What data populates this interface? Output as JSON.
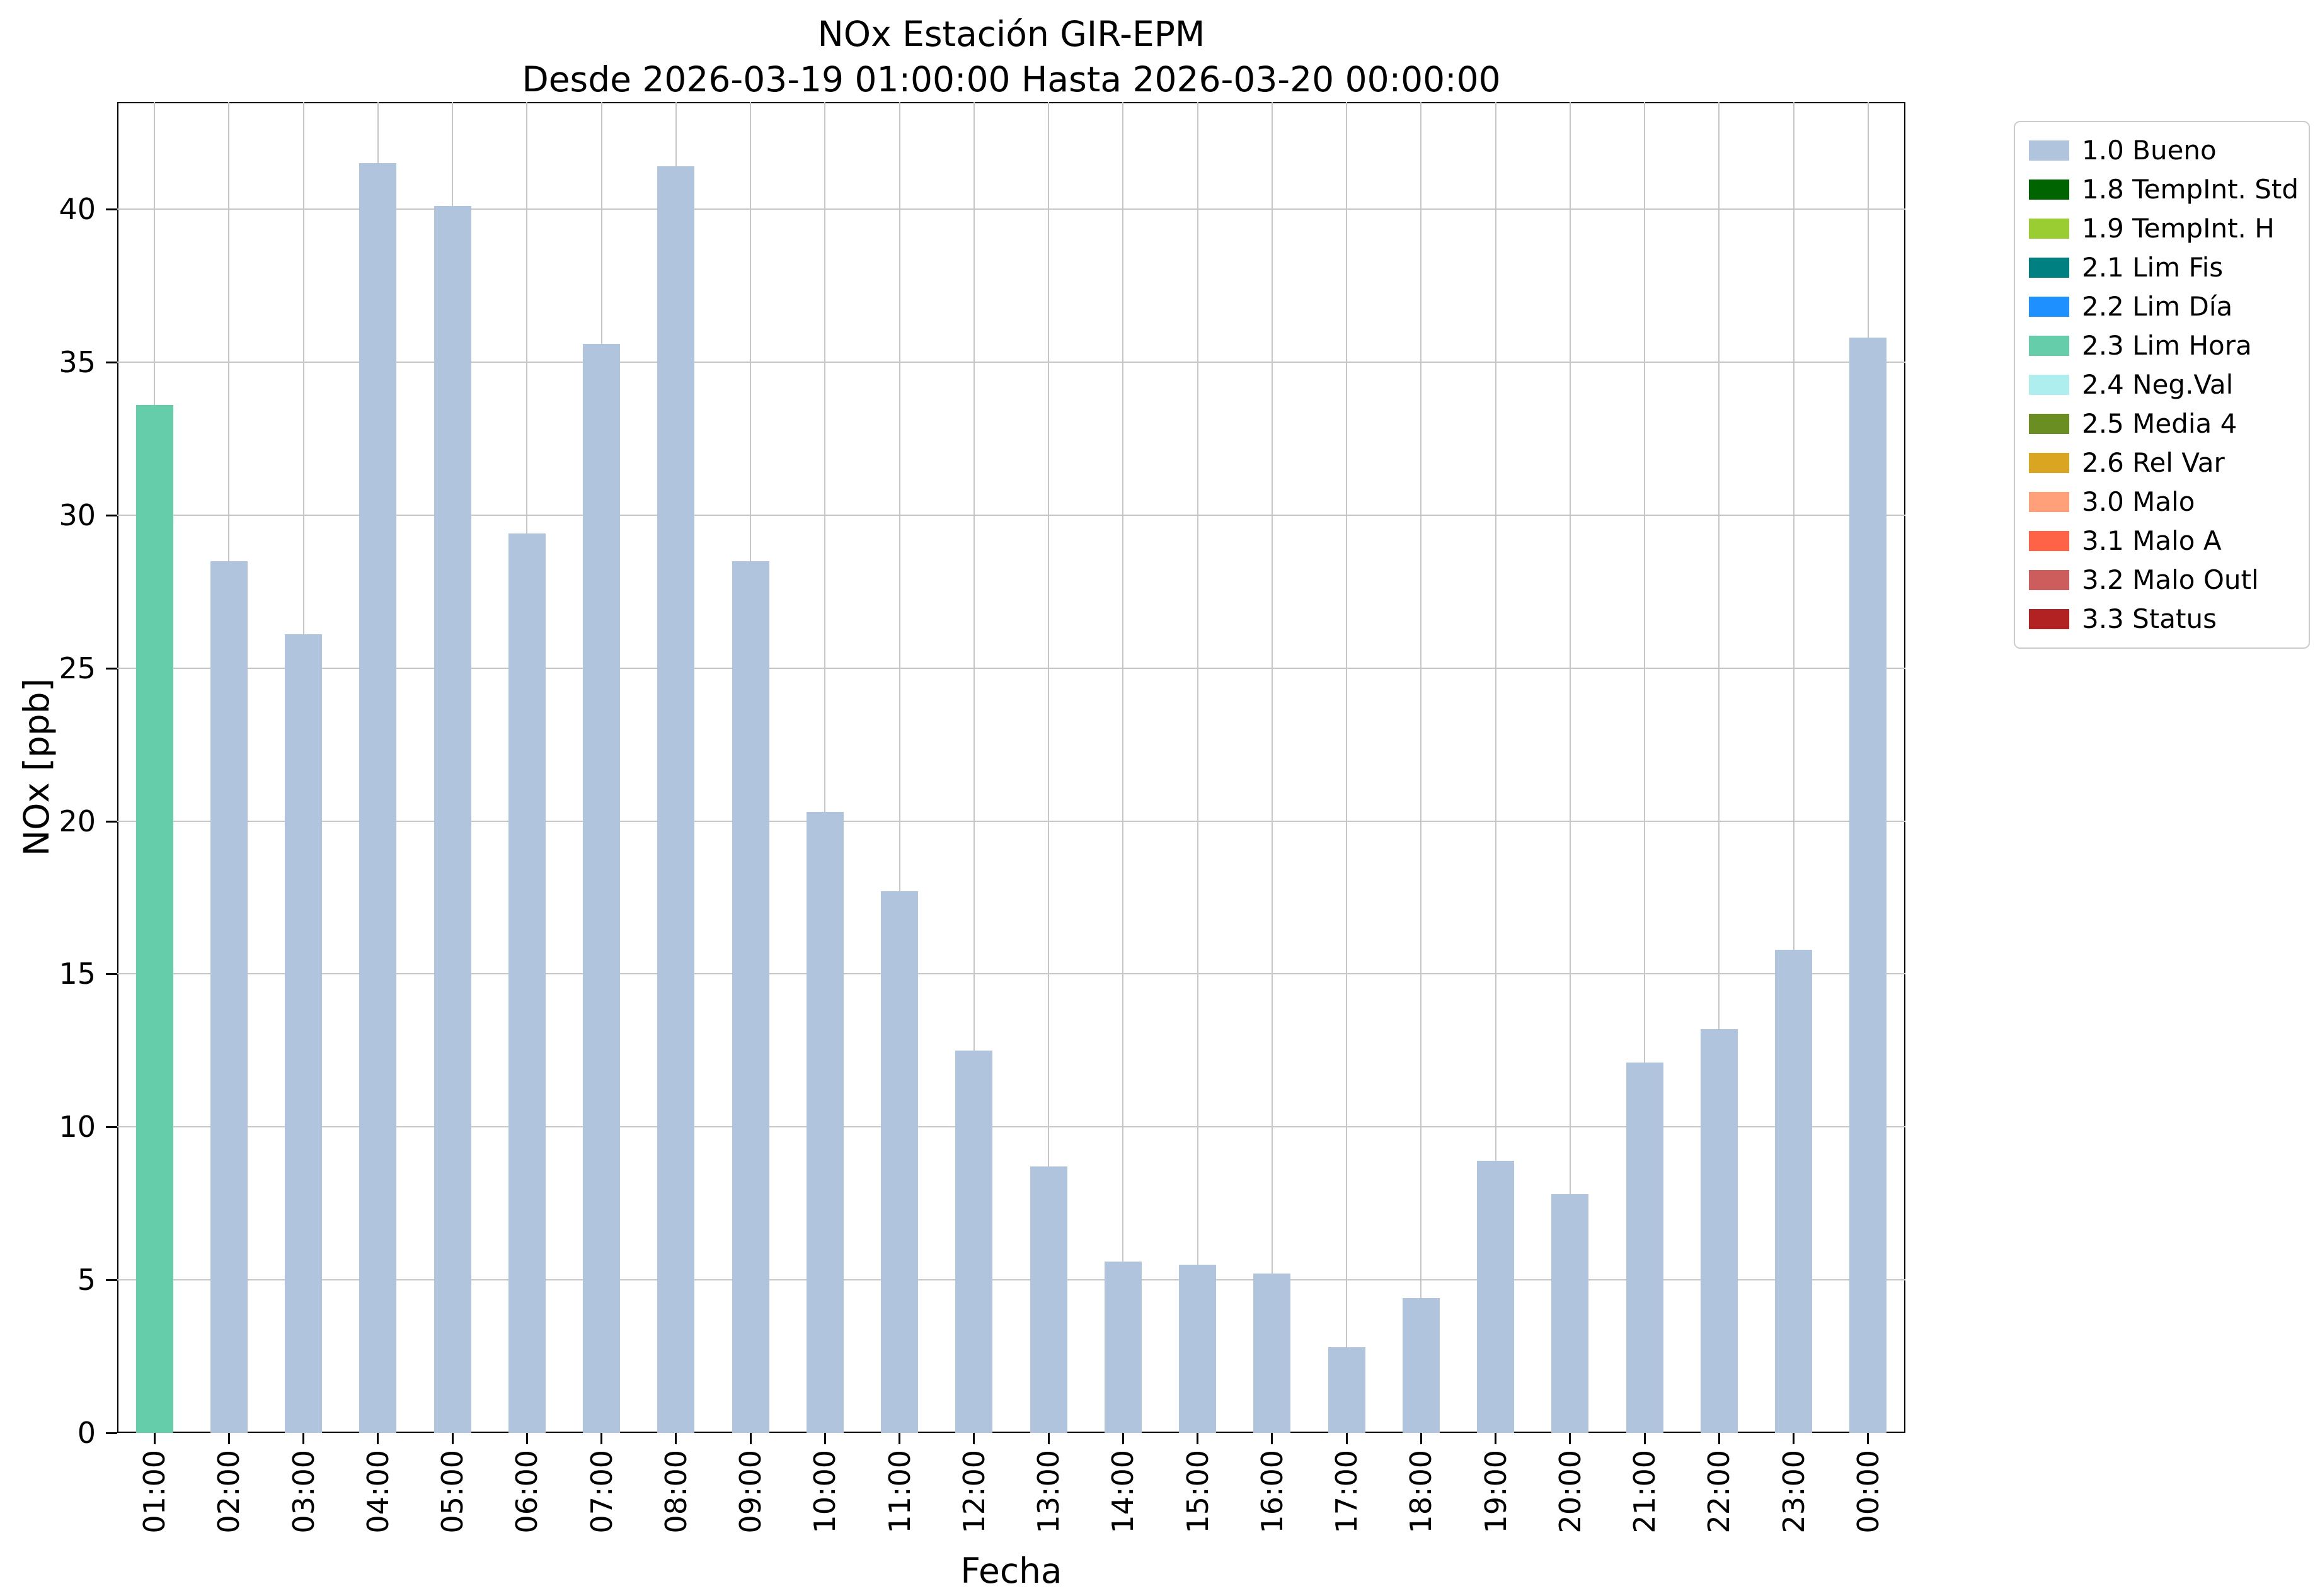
{
  "chart_data": {
    "type": "bar",
    "title": "NOx Estación GIR-EPM",
    "subtitle": "Desde 2026-03-19 01:00:00 Hasta 2026-03-20 00:00:00",
    "xlabel": "Fecha",
    "ylabel": "NOx [ppb]",
    "ylim": [
      0,
      43.5
    ],
    "yticks": [
      0,
      5,
      10,
      15,
      20,
      25,
      30,
      35,
      40
    ],
    "grid": true,
    "categories": [
      "01:00",
      "02:00",
      "03:00",
      "04:00",
      "05:00",
      "06:00",
      "07:00",
      "08:00",
      "09:00",
      "10:00",
      "11:00",
      "12:00",
      "13:00",
      "14:00",
      "15:00",
      "16:00",
      "17:00",
      "18:00",
      "19:00",
      "20:00",
      "21:00",
      "22:00",
      "23:00",
      "00:00"
    ],
    "values": [
      33.6,
      28.5,
      26.1,
      41.5,
      40.1,
      29.4,
      35.6,
      41.4,
      28.5,
      20.3,
      17.7,
      12.5,
      8.7,
      5.6,
      5.5,
      5.2,
      2.8,
      4.4,
      8.9,
      7.8,
      12.1,
      13.2,
      15.8,
      35.8
    ],
    "bar_colors": [
      "#66CDAA",
      "#B0C4DE",
      "#B0C4DE",
      "#B0C4DE",
      "#B0C4DE",
      "#B0C4DE",
      "#B0C4DE",
      "#B0C4DE",
      "#B0C4DE",
      "#B0C4DE",
      "#B0C4DE",
      "#B0C4DE",
      "#B0C4DE",
      "#B0C4DE",
      "#B0C4DE",
      "#B0C4DE",
      "#B0C4DE",
      "#B0C4DE",
      "#B0C4DE",
      "#B0C4DE",
      "#B0C4DE",
      "#B0C4DE",
      "#B0C4DE",
      "#B0C4DE"
    ],
    "default_bar_color": "#B0C4DE",
    "highlight_bar": {
      "category": "01:00",
      "status": "2.3 Lim Hora",
      "color": "#66CDAA"
    },
    "legend": {
      "position": "outside-upper-right",
      "entries": [
        {
          "label": "1.0 Bueno",
          "color": "#B0C4DE"
        },
        {
          "label": "1.8 TempInt. Std",
          "color": "#006400"
        },
        {
          "label": "1.9 TempInt. H",
          "color": "#9ACD32"
        },
        {
          "label": "2.1 Lim Fis",
          "color": "#008080"
        },
        {
          "label": "2.2 Lim Día",
          "color": "#1E90FF"
        },
        {
          "label": "2.3 Lim Hora",
          "color": "#66CDAA"
        },
        {
          "label": "2.4 Neg.Val",
          "color": "#AFEEEE"
        },
        {
          "label": "2.5 Media 4",
          "color": "#6B8E23"
        },
        {
          "label": "2.6 Rel Var",
          "color": "#DAA520"
        },
        {
          "label": "3.0 Malo",
          "color": "#FFA07A"
        },
        {
          "label": "3.1 Malo A",
          "color": "#FF6347"
        },
        {
          "label": "3.2 Malo Outl",
          "color": "#CD5C5C"
        },
        {
          "label": "3.3 Status",
          "color": "#B22222"
        }
      ]
    }
  }
}
